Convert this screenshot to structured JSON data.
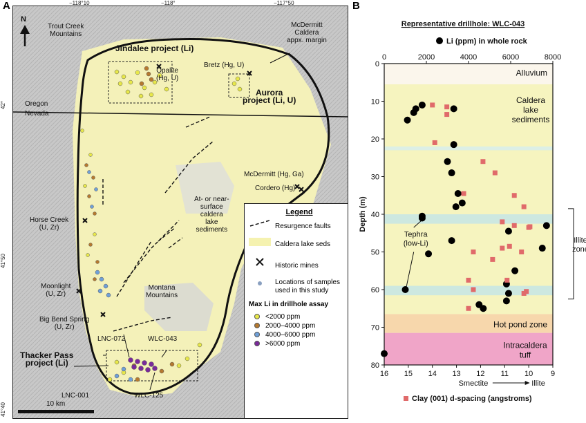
{
  "panel_a_letter": "A",
  "panel_b_letter": "B",
  "map": {
    "coords_top": [
      "−118°10",
      "−118°",
      "−117°50"
    ],
    "coords_left": [
      "42°",
      "41°50",
      "41°40"
    ],
    "north_label": "N",
    "labels": {
      "trout_creek": "Trout Creek\nMountains",
      "mcdermitt_margin": "McDermitt\nCaldera\nappx. margin",
      "jindalee": "Jindalee project (Li)",
      "opalite": "Opalite\n(Hg, U)",
      "bretz": "Bretz (Hg, U)",
      "aurora": "Aurora\nproject (Li, U)",
      "oregon": "Oregon",
      "nevada": "Nevada",
      "mcdermitt_mine": "McDermitt (Hg, Ga)",
      "cordero": "Cordero (Hg)",
      "caldera_seds": "At- or near-\nsurface\ncaldera\nlake\nsediments",
      "horse_creek": "Horse Creek\n(U, Zr)",
      "moonlight": "Moonlight\n(U, Zr)",
      "montana": "Montana\nMountains",
      "big_bend": "Big Bend Spring\n(U, Zr)",
      "lnc072": "LNC-072",
      "wlc043": "WLC-043",
      "thacker": "Thacker Pass\nproject (Li)",
      "lnc001": "LNC-001",
      "wlc125": "WLC-125"
    },
    "scale_label": "10 km",
    "legend": {
      "title": "Legend",
      "items": [
        "Resurgence faults",
        "Caldera lake seds",
        "Historic mines",
        "Locations of samples\nused in this study"
      ],
      "subtitle": "Max Li in drillhole assay",
      "classes": [
        {
          "label": "<2000 ppm",
          "color": "#e8e84a"
        },
        {
          "label": "2000–4000 ppm",
          "color": "#b5792f"
        },
        {
          "label": "4000–6000 ppm",
          "color": "#6fa0d8"
        },
        {
          "label": ">6000 ppm",
          "color": "#7a2a9a"
        }
      ],
      "colors": {
        "lake": "#f5f2b0",
        "sample": "#8aa0c0"
      }
    }
  },
  "chart_data": {
    "type": "scatter",
    "title": "Representative drillhole: WLC-043",
    "ylabel": "Depth (m)",
    "ylim": [
      0,
      80
    ],
    "yticks": [
      0,
      10,
      20,
      30,
      40,
      50,
      60,
      70,
      80
    ],
    "top_axis": {
      "label": "Li (ppm) in whole rock",
      "range": [
        0,
        8000
      ],
      "ticks": [
        2000,
        4000,
        6000,
        8000
      ]
    },
    "bottom_axis": {
      "label": "Clay (001) d-spacing (angstroms)",
      "range": [
        16,
        9
      ],
      "ticks": [
        16,
        15,
        14,
        13,
        12,
        11,
        10,
        9
      ],
      "left_label": "Smectite",
      "right_label": "Illite"
    },
    "zones": [
      {
        "label": "Alluvium",
        "from": 0,
        "to": 5.5,
        "color": "#fbf6ec"
      },
      {
        "label": "Caldera\nlake\nsediments",
        "from": 5.5,
        "to": 66.5,
        "color": "#f6f4bf"
      },
      {
        "label": "Hot pond zone",
        "from": 66.5,
        "to": 71.5,
        "color": "#f7d7ac"
      },
      {
        "label": "Intracaldera\ntuff",
        "from": 71.5,
        "to": 80,
        "color": "#f0a5c8"
      }
    ],
    "bands": [
      {
        "from": 22,
        "to": 23,
        "color": "#dcefe6"
      },
      {
        "from": 40,
        "to": 42.5,
        "color": "#cde8e0"
      },
      {
        "from": 59,
        "to": 61.5,
        "color": "#cde8e0"
      }
    ],
    "illite_zone": {
      "label": "Illite\nzone",
      "from": 38.5,
      "to": 62.5
    },
    "tephra_label": "Tephra\n(low-Li)",
    "series": [
      {
        "name": "Li (ppm) in whole rock",
        "axis": "top",
        "color": "#000000",
        "points": [
          [
            1800,
            11
          ],
          [
            1500,
            12
          ],
          [
            1400,
            13
          ],
          [
            1100,
            15
          ],
          [
            3300,
            12
          ],
          [
            3300,
            21.5
          ],
          [
            3000,
            26
          ],
          [
            3200,
            29
          ],
          [
            3500,
            34.5
          ],
          [
            3700,
            37
          ],
          [
            3400,
            38
          ],
          [
            1800,
            41
          ],
          [
            1800,
            40.5
          ],
          [
            3200,
            47
          ],
          [
            5900,
            44.5
          ],
          [
            7700,
            43
          ],
          [
            7500,
            49
          ],
          [
            2100,
            50.5
          ],
          [
            6200,
            55
          ],
          [
            5800,
            58.5
          ],
          [
            5900,
            61
          ],
          [
            5800,
            63
          ],
          [
            4500,
            64
          ],
          [
            4700,
            65
          ],
          [
            1000,
            60
          ],
          [
            0,
            77
          ]
        ]
      },
      {
        "name": "Clay (001) d-spacing (angstroms)",
        "axis": "bottom",
        "color": "#e06a6a",
        "points": [
          [
            14.0,
            11
          ],
          [
            13.4,
            11.5
          ],
          [
            13.4,
            13.5
          ],
          [
            13.9,
            21
          ],
          [
            11.9,
            26
          ],
          [
            11.4,
            29
          ],
          [
            12.7,
            34.5
          ],
          [
            10.6,
            35
          ],
          [
            10.2,
            38
          ],
          [
            11.1,
            42
          ],
          [
            10.6,
            43
          ],
          [
            10.0,
            43.5
          ],
          [
            11.1,
            49
          ],
          [
            10.8,
            48.5
          ],
          [
            10.3,
            50
          ],
          [
            12.3,
            50
          ],
          [
            12.5,
            57.5
          ],
          [
            12.3,
            60
          ],
          [
            10.9,
            57.5
          ],
          [
            10.1,
            60.5
          ],
          [
            10.2,
            61
          ],
          [
            12.5,
            65
          ],
          [
            11.5,
            52
          ],
          [
            9.95,
            43.3
          ]
        ]
      }
    ]
  }
}
